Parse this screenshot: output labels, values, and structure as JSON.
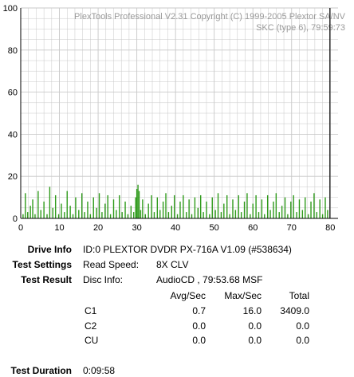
{
  "chart_data": {
    "type": "bar",
    "watermark": [
      "PlexTools Professional V2.31 Copyright (C) 1999-2005 Plextor SA/NV",
      "SKC (type 6), 79:59:73"
    ],
    "xlim": [
      0,
      82
    ],
    "ylim": [
      0,
      100
    ],
    "x_ticks": [
      0,
      10,
      20,
      30,
      40,
      50,
      60,
      70,
      80
    ],
    "y_ticks": [
      0,
      20,
      40,
      60,
      80,
      100
    ],
    "grid": true,
    "marker_x": 79.9,
    "colors": {
      "bars": "#2e9a1a",
      "marker": "#000000",
      "grid": "#c8c8c8",
      "watermark": "#9a9a9a"
    },
    "series": [
      {
        "values": [
          [
            0.6,
            2
          ],
          [
            1.2,
            12
          ],
          [
            1.8,
            3
          ],
          [
            2.5,
            6
          ],
          [
            3.1,
            9
          ],
          [
            3.7,
            2
          ],
          [
            4.5,
            13
          ],
          [
            5.2,
            4
          ],
          [
            6.0,
            8
          ],
          [
            6.8,
            2
          ],
          [
            7.5,
            15
          ],
          [
            8.3,
            5
          ],
          [
            9.0,
            11
          ],
          [
            9.8,
            2
          ],
          [
            10.5,
            7
          ],
          [
            11.3,
            3
          ],
          [
            12.0,
            13
          ],
          [
            12.8,
            6
          ],
          [
            13.5,
            2
          ],
          [
            14.2,
            10
          ],
          [
            15.0,
            4
          ],
          [
            15.8,
            12
          ],
          [
            16.5,
            3
          ],
          [
            17.3,
            8
          ],
          [
            18.0,
            2
          ],
          [
            18.8,
            10
          ],
          [
            19.6,
            5
          ],
          [
            20.3,
            12
          ],
          [
            21.0,
            3
          ],
          [
            21.8,
            7
          ],
          [
            22.5,
            11
          ],
          [
            23.2,
            2
          ],
          [
            24.0,
            9
          ],
          [
            24.7,
            4
          ],
          [
            25.5,
            11
          ],
          [
            26.2,
            3
          ],
          [
            27.0,
            8
          ],
          [
            27.7,
            2
          ],
          [
            28.5,
            6
          ],
          [
            29.2,
            3
          ],
          [
            29.7,
            10
          ],
          [
            30.0,
            14
          ],
          [
            30.3,
            16
          ],
          [
            30.6,
            13
          ],
          [
            31.0,
            4
          ],
          [
            31.5,
            9
          ],
          [
            32.2,
            2
          ],
          [
            33.0,
            7
          ],
          [
            33.8,
            11
          ],
          [
            34.5,
            3
          ],
          [
            35.3,
            10
          ],
          [
            36.0,
            4
          ],
          [
            36.8,
            8
          ],
          [
            37.5,
            12
          ],
          [
            38.2,
            3
          ],
          [
            39.0,
            6
          ],
          [
            39.7,
            11
          ],
          [
            40.5,
            2
          ],
          [
            41.2,
            8
          ],
          [
            42.0,
            11
          ],
          [
            42.8,
            3
          ],
          [
            43.5,
            9
          ],
          [
            44.2,
            2
          ],
          [
            45.0,
            10
          ],
          [
            45.8,
            5
          ],
          [
            46.5,
            11
          ],
          [
            47.2,
            3
          ],
          [
            48.0,
            8
          ],
          [
            48.8,
            2
          ],
          [
            49.5,
            10
          ],
          [
            50.3,
            4
          ],
          [
            51.0,
            12
          ],
          [
            51.8,
            3
          ],
          [
            52.5,
            7
          ],
          [
            53.3,
            11
          ],
          [
            54.0,
            2
          ],
          [
            54.8,
            9
          ],
          [
            55.5,
            4
          ],
          [
            56.3,
            11
          ],
          [
            57.0,
            3
          ],
          [
            57.8,
            8
          ],
          [
            58.5,
            12
          ],
          [
            59.3,
            2
          ],
          [
            60.0,
            7
          ],
          [
            60.8,
            11
          ],
          [
            61.5,
            3
          ],
          [
            62.3,
            9
          ],
          [
            63.0,
            2
          ],
          [
            63.8,
            11
          ],
          [
            64.5,
            4
          ],
          [
            65.3,
            8
          ],
          [
            66.0,
            12
          ],
          [
            66.8,
            3
          ],
          [
            67.5,
            6
          ],
          [
            68.3,
            10
          ],
          [
            69.0,
            2
          ],
          [
            69.8,
            8
          ],
          [
            70.5,
            11
          ],
          [
            71.3,
            3
          ],
          [
            72.0,
            9
          ],
          [
            72.8,
            4
          ],
          [
            73.5,
            10
          ],
          [
            74.3,
            2
          ],
          [
            75.0,
            8
          ],
          [
            75.8,
            12
          ],
          [
            76.5,
            3
          ],
          [
            77.3,
            9
          ],
          [
            78.0,
            2
          ],
          [
            78.7,
            10
          ],
          [
            79.3,
            4
          ]
        ]
      }
    ]
  },
  "info": {
    "drive_info_label": "Drive Info",
    "drive_info_value": "ID:0 PLEXTOR DVDR PX-716A V1.09 (#538634)",
    "test_settings_label": "Test Settings",
    "read_speed_label": "Read Speed:",
    "read_speed_value": "8X CLV",
    "test_result_label": "Test Result",
    "disc_info_label": "Disc Info:",
    "disc_info_value": "AudioCD , 79:53.68 MSF",
    "col_avg": "Avg/Sec",
    "col_max": "Max/Sec",
    "col_total": "Total",
    "rows": [
      {
        "name": "C1",
        "avg": "0.7",
        "max": "16.0",
        "total": "3409.0"
      },
      {
        "name": "C2",
        "avg": "0.0",
        "max": "0.0",
        "total": "0.0"
      },
      {
        "name": "CU",
        "avg": "0.0",
        "max": "0.0",
        "total": "0.0"
      }
    ],
    "test_duration_label": "Test Duration",
    "test_duration_value": "0:09:58"
  }
}
